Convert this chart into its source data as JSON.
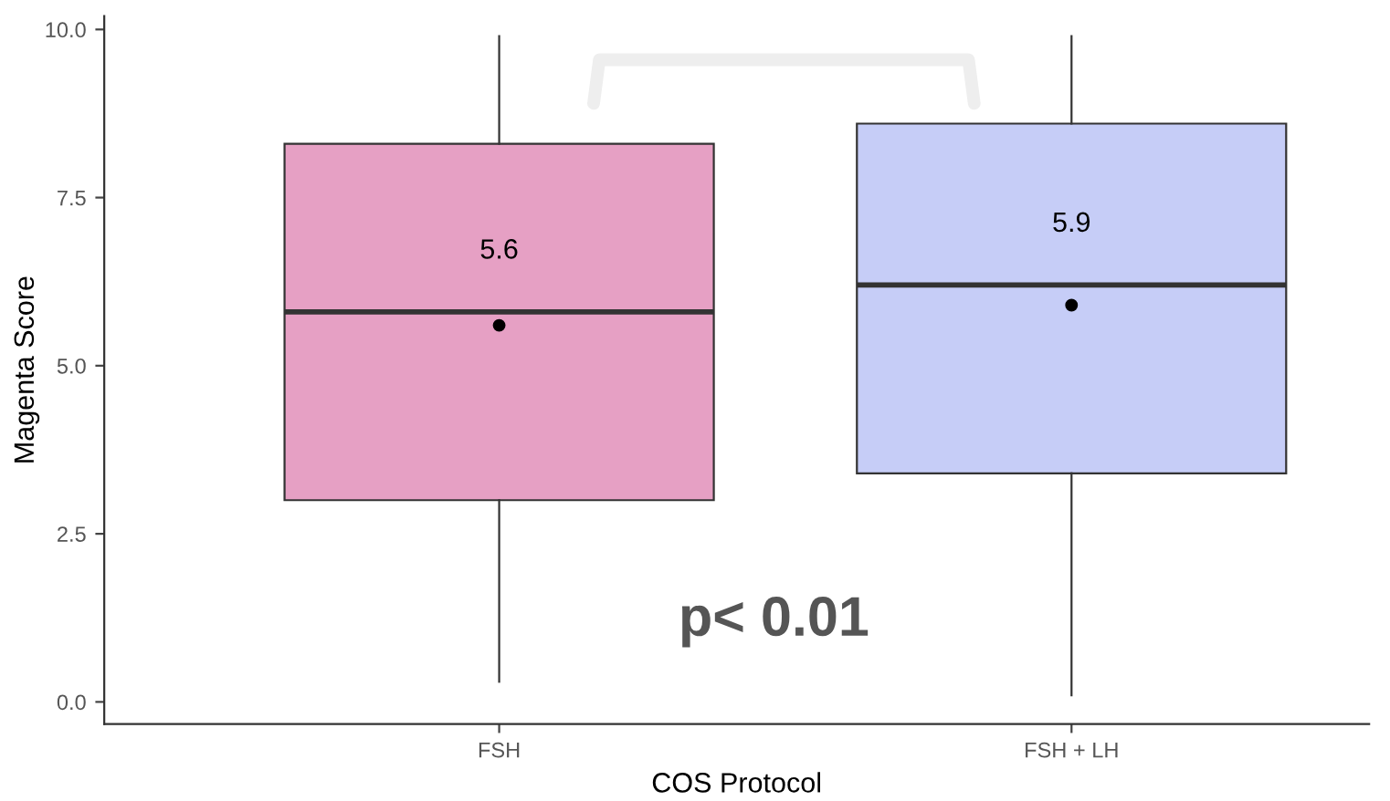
{
  "chart_data": {
    "type": "box",
    "xlabel": "COS Protocol",
    "ylabel": "Magenta Score",
    "categories": [
      "FSH",
      "FSH + LH"
    ],
    "boxes": [
      {
        "low": 0.3,
        "q1": 3.0,
        "median": 5.8,
        "q3": 8.3,
        "high": 9.9,
        "mean": 5.6
      },
      {
        "low": 0.1,
        "q1": 3.4,
        "median": 6.2,
        "q3": 8.6,
        "high": 9.9,
        "mean": 5.9
      }
    ],
    "colors": [
      "#e6a0c4",
      "#c6cdf7"
    ],
    "ylim": [
      -0.33,
      10.2
    ],
    "yticks": [
      {
        "value": 0,
        "label": "0.0"
      },
      {
        "value": 2.5,
        "label": "2.5"
      },
      {
        "value": 5,
        "label": "5.0"
      },
      {
        "value": 7.5,
        "label": "7.5"
      },
      {
        "value": 10,
        "label": "10.0"
      }
    ],
    "annotations": [
      "5.6",
      "5.9",
      "p< 0.01"
    ],
    "grid": false,
    "legend": false
  }
}
